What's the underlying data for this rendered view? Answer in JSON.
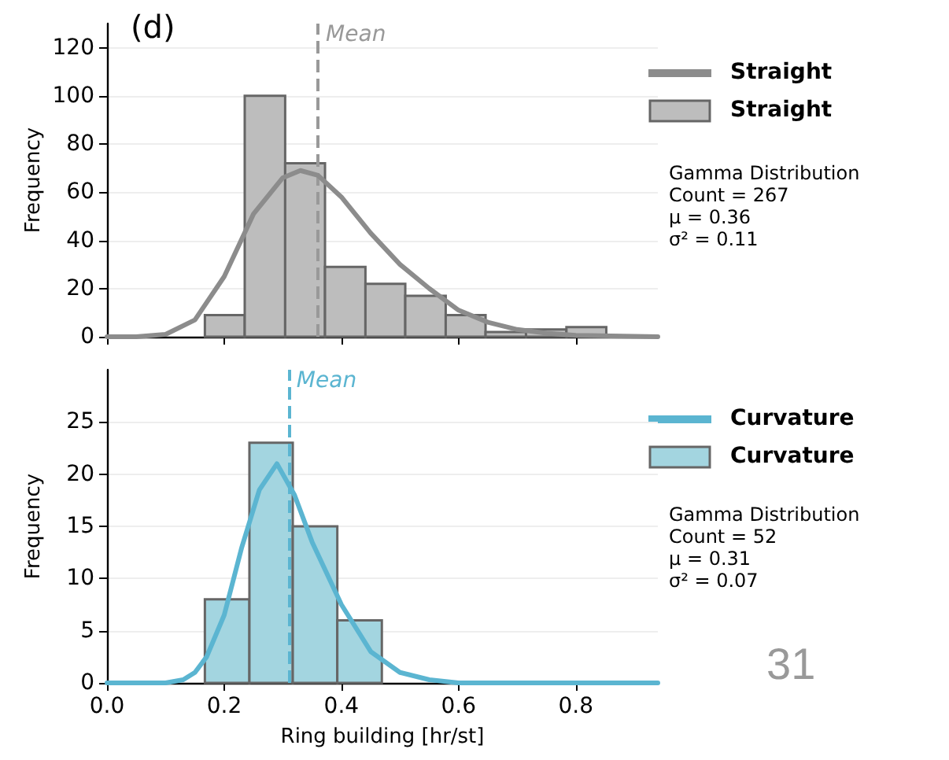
{
  "chart_data": [
    {
      "type": "histogram",
      "title": "(d)",
      "ylabel": "Frequency",
      "xlim": [
        0,
        0.94
      ],
      "xticks": [
        0,
        0.2,
        0.4,
        0.6,
        0.8
      ],
      "ylim": [
        0,
        130
      ],
      "yticks": [
        0,
        20,
        40,
        60,
        80,
        100,
        120
      ],
      "tick_labels": "y",
      "grid": "y",
      "legend": "right",
      "series": [
        {
          "type": "line",
          "name": "Straight",
          "color": "#8c8c8c",
          "x": [
            0,
            0.05,
            0.1,
            0.15,
            0.2,
            0.25,
            0.3,
            0.33,
            0.36,
            0.4,
            0.45,
            0.5,
            0.55,
            0.6,
            0.65,
            0.7,
            0.75,
            0.8,
            0.94
          ],
          "values": [
            0,
            0,
            1,
            7,
            25,
            51,
            66,
            69,
            67,
            58,
            43,
            30,
            20,
            11,
            6,
            3,
            1.5,
            0.6,
            0
          ]
        },
        {
          "name": "Straight",
          "color": "#bdbdbd",
          "bins": [
            0.167,
            0.235,
            0.304,
            0.372,
            0.441,
            0.509,
            0.578,
            0.646,
            0.715,
            0.784,
            0.852
          ],
          "values": [
            9,
            100,
            72,
            29,
            22,
            17,
            9,
            2,
            3,
            4
          ]
        }
      ],
      "ref_lines": [
        {
          "axis": "x",
          "value": 0.36,
          "label": "Mean",
          "color": "#999999",
          "line_style": "dashed"
        }
      ],
      "annotations": [
        "Gamma Distribution",
        "Count = 267",
        "μ = 0.36",
        "σ² = 0.11"
      ]
    },
    {
      "type": "histogram",
      "xlabel": "Ring building [hr/st]",
      "ylabel": "Frequency",
      "xlim": [
        0,
        0.94
      ],
      "xticks": [
        {
          "value": 0,
          "label": "0.0"
        },
        {
          "value": 0.2,
          "label": "0.2"
        },
        {
          "value": 0.4,
          "label": "0.4"
        },
        {
          "value": 0.6,
          "label": "0.6"
        },
        {
          "value": 0.8,
          "label": "0.8"
        }
      ],
      "ylim": [
        0,
        30
      ],
      "yticks": [
        0,
        5,
        10,
        15,
        20,
        25
      ],
      "grid": "y",
      "legend": "right",
      "series": [
        {
          "type": "line",
          "name": "Curvature",
          "color": "#5bb5d1",
          "x": [
            0,
            0.1,
            0.13,
            0.15,
            0.17,
            0.2,
            0.23,
            0.26,
            0.29,
            0.32,
            0.35,
            0.4,
            0.45,
            0.5,
            0.55,
            0.6,
            0.94
          ],
          "values": [
            0,
            0,
            0.3,
            1,
            2.5,
            6.5,
            13,
            18.5,
            21,
            18,
            13.5,
            7.5,
            3,
            1,
            0.3,
            0,
            0
          ]
        },
        {
          "name": "Curvature",
          "color": "#a3d5e0",
          "bins": [
            0.167,
            0.243,
            0.317,
            0.393,
            0.469
          ],
          "values": [
            8,
            23,
            15,
            6
          ]
        }
      ],
      "ref_lines": [
        {
          "axis": "x",
          "value": 0.31,
          "label": "Mean",
          "color": "#5bb5d1",
          "line_style": "dashed"
        }
      ],
      "annotations": [
        "Gamma Distribution",
        "Count = 52",
        "μ = 0.31",
        "σ² = 0.07",
        "31"
      ]
    }
  ]
}
